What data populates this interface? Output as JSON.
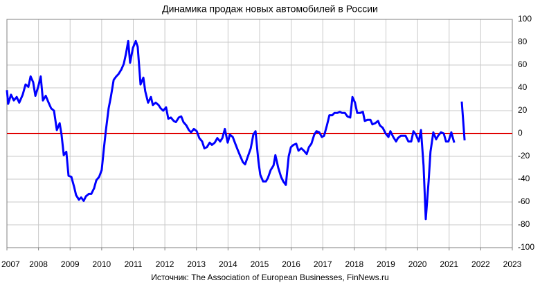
{
  "chart_data": {
    "type": "line",
    "title": "Динамика продаж новых автомобилей в России",
    "source": "Источник: The Association of European Businesses, FinNews.ru",
    "x": [
      2007.0,
      2007.04,
      2007.13,
      2007.22,
      2007.31,
      2007.39,
      2007.5,
      2007.59,
      2007.68,
      2007.75,
      2007.83,
      2007.9,
      2007.99,
      2008.07,
      2008.14,
      2008.23,
      2008.32,
      2008.4,
      2008.49,
      2008.58,
      2008.67,
      2008.73,
      2008.8,
      2008.88,
      2008.95,
      2009.04,
      2009.13,
      2009.19,
      2009.28,
      2009.35,
      2009.43,
      2009.5,
      2009.59,
      2009.67,
      2009.76,
      2009.83,
      2009.92,
      2010.0,
      2010.07,
      2010.13,
      2010.22,
      2010.29,
      2010.38,
      2010.46,
      2010.53,
      2010.62,
      2010.7,
      2010.77,
      2010.84,
      2010.9,
      2010.99,
      2011.08,
      2011.14,
      2011.23,
      2011.32,
      2011.38,
      2011.47,
      2011.56,
      2011.62,
      2011.71,
      2011.8,
      2011.87,
      2011.95,
      2012.04,
      2012.11,
      2012.19,
      2012.28,
      2012.35,
      2012.44,
      2012.52,
      2012.59,
      2012.68,
      2012.76,
      2012.83,
      2012.92,
      2013.01,
      2013.09,
      2013.18,
      2013.25,
      2013.33,
      2013.42,
      2013.49,
      2013.58,
      2013.66,
      2013.75,
      2013.82,
      2013.9,
      2013.99,
      2014.06,
      2014.15,
      2014.23,
      2014.3,
      2014.39,
      2014.47,
      2014.54,
      2014.63,
      2014.72,
      2014.8,
      2014.87,
      2014.96,
      2015.02,
      2015.11,
      2015.2,
      2015.26,
      2015.35,
      2015.44,
      2015.5,
      2015.59,
      2015.68,
      2015.75,
      2015.83,
      2015.92,
      2015.99,
      2016.07,
      2016.16,
      2016.23,
      2016.32,
      2016.4,
      2016.49,
      2016.56,
      2016.64,
      2016.73,
      2016.8,
      2016.89,
      2016.97,
      2017.04,
      2017.13,
      2017.21,
      2017.3,
      2017.37,
      2017.46,
      2017.54,
      2017.61,
      2017.7,
      2017.78,
      2017.87,
      2017.94,
      2018.02,
      2018.09,
      2018.18,
      2018.27,
      2018.33,
      2018.42,
      2018.51,
      2018.57,
      2018.66,
      2018.75,
      2018.81,
      2018.9,
      2018.99,
      2019.08,
      2019.14,
      2019.23,
      2019.32,
      2019.38,
      2019.47,
      2019.56,
      2019.62,
      2019.71,
      2019.8,
      2019.87,
      2019.95,
      2020.04,
      2020.11,
      2020.19,
      2020.26,
      2020.35,
      2020.41,
      2020.5,
      2020.59,
      2020.65,
      2020.74,
      2020.83,
      2020.9,
      2020.98,
      2021.07,
      2021.16,
      2021.25,
      2021.4,
      2021.49
    ],
    "series": [
      {
        "color": "#0000ff",
        "values": [
          38,
          26,
          34,
          29,
          32,
          27,
          34,
          43,
          41,
          50,
          45,
          33,
          41,
          50,
          29,
          33,
          27,
          22,
          20,
          3,
          9,
          -1,
          -19,
          -16,
          -37,
          -38,
          -47,
          -54,
          -58,
          -56,
          -59,
          -55,
          -53,
          -53,
          -48,
          -41,
          -38,
          -32,
          -13,
          2,
          22,
          32,
          47,
          50,
          52,
          56,
          61,
          70,
          81,
          62,
          75,
          81,
          76,
          43,
          49,
          37,
          27,
          32,
          25,
          27,
          25,
          22,
          20,
          23,
          13,
          14,
          11,
          10,
          14,
          15,
          10,
          7,
          3,
          1,
          4,
          2,
          -4,
          -7,
          -13,
          -12,
          -8,
          -10,
          -8,
          -4,
          -7,
          -4,
          4,
          -8,
          -1,
          -3,
          -9,
          -14,
          -20,
          -25,
          -27,
          -20,
          -13,
          -1,
          2,
          -24,
          -36,
          -42,
          -42,
          -39,
          -32,
          -28,
          -19,
          -30,
          -38,
          -42,
          -45,
          -20,
          -12,
          -10,
          -9,
          -15,
          -13,
          -15,
          -18,
          -12,
          -9,
          -1,
          2,
          1,
          -3,
          -2,
          7,
          16,
          16,
          18,
          18,
          19,
          18,
          18,
          15,
          14,
          32,
          27,
          18,
          18,
          19,
          11,
          12,
          12,
          8,
          9,
          11,
          7,
          5,
          0,
          -3,
          2,
          -3,
          -7,
          -4,
          -2,
          -2,
          -2,
          -7,
          -7,
          2,
          -1,
          -7,
          3,
          -28,
          -75,
          -42,
          -16,
          1,
          -5,
          -2,
          1,
          0,
          -7,
          -7,
          1,
          -8,
          null,
          28,
          -6
        ]
      }
    ],
    "xlim": [
      2007,
      2023
    ],
    "xticks": [
      2007,
      2008,
      2009,
      2010,
      2011,
      2012,
      2013,
      2014,
      2015,
      2016,
      2017,
      2018,
      2019,
      2020,
      2021,
      2022,
      2023
    ],
    "ylim": [
      -100,
      100
    ],
    "yticks": [
      -100,
      -80,
      -60,
      -40,
      -20,
      0,
      20,
      40,
      60,
      80,
      100
    ],
    "grid": true,
    "y_axis_side": "right",
    "zero_line_color": "#e00000"
  }
}
